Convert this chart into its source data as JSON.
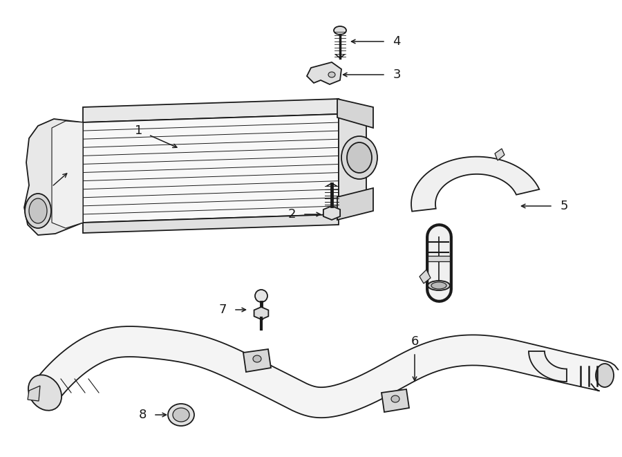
{
  "background_color": "#ffffff",
  "line_color": "#1a1a1a",
  "lw": 1.3,
  "figsize": [
    9.0,
    6.61
  ],
  "dpi": 100
}
